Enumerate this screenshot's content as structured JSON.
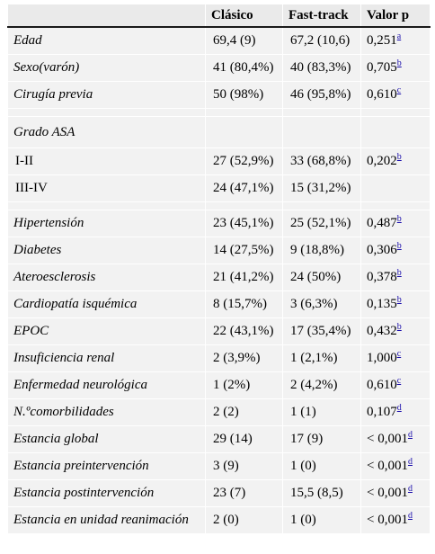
{
  "headers": [
    "",
    "Clásico",
    "Fast-track",
    "Valor p"
  ],
  "rows": [
    {
      "label": "Edad",
      "a": "69,4 (9)",
      "b": "67,2 (10,6)",
      "p": "0,251",
      "note": "a"
    },
    {
      "label": "Sexo(varón)",
      "a": "41 (80,4%)",
      "b": "40 (83,3%)",
      "p": "0,705",
      "note": "b"
    },
    {
      "label": "Cirugía previa",
      "a": "50 (98%)",
      "b": "46 (95,8%)",
      "p": "0,610",
      "note": "c"
    },
    {
      "label": "Grado ASA",
      "a": "",
      "b": "",
      "p": "",
      "note": ""
    },
    {
      "label": "I-II",
      "a": "27 (52,9%)",
      "b": "33 (68,8%)",
      "p": "0,202",
      "note": "b"
    },
    {
      "label": "III-IV",
      "a": "24 (47,1%)",
      "b": "15 (31,2%)",
      "p": "",
      "note": ""
    },
    {
      "label": "Hipertensión",
      "a": "23 (45,1%)",
      "b": "25 (52,1%)",
      "p": "0,487",
      "note": "b"
    },
    {
      "label": "Diabetes",
      "a": "14 (27,5%)",
      "b": "9 (18,8%)",
      "p": "0,306",
      "note": "b"
    },
    {
      "label": "Ateroesclerosis",
      "a": "21 (41,2%)",
      "b": "24 (50%)",
      "p": "0,378",
      "note": "b"
    },
    {
      "label": "Cardiopatía isquémica",
      "a": "8 (15,7%)",
      "b": "3 (6,3%)",
      "p": "0,135",
      "note": "b"
    },
    {
      "label": "EPOC",
      "a": "22 (43,1%)",
      "b": "17 (35,4%)",
      "p": "0,432",
      "note": "b"
    },
    {
      "label": "Insuficiencia renal",
      "a": "2 (3,9%)",
      "b": "1 (2,1%)",
      "p": "1,000",
      "note": "c"
    },
    {
      "label": "Enfermedad neurológica",
      "a": "1 (2%)",
      "b": "2 (4,2%)",
      "p": "0,610",
      "note": "c"
    },
    {
      "label": "N.ºcomorbilidades",
      "a": "2 (2)",
      "b": "1 (1)",
      "p": "0,107",
      "note": "d"
    },
    {
      "label": "Estancia global",
      "a": "29 (14)",
      "b": "17 (9)",
      "p": "< 0,001",
      "note": "d"
    },
    {
      "label": "Estancia preintervención",
      "a": "3 (9)",
      "b": "1 (0)",
      "p": "< 0,001",
      "note": "d"
    },
    {
      "label": "Estancia postintervención",
      "a": "23 (7)",
      "b": "15,5 (8,5)",
      "p": "< 0,001",
      "note": "d"
    },
    {
      "label": "Estancia en unidad reanimación",
      "a": "2 (0)",
      "b": "1 (0)",
      "p": "< 0,001",
      "note": "d"
    }
  ]
}
